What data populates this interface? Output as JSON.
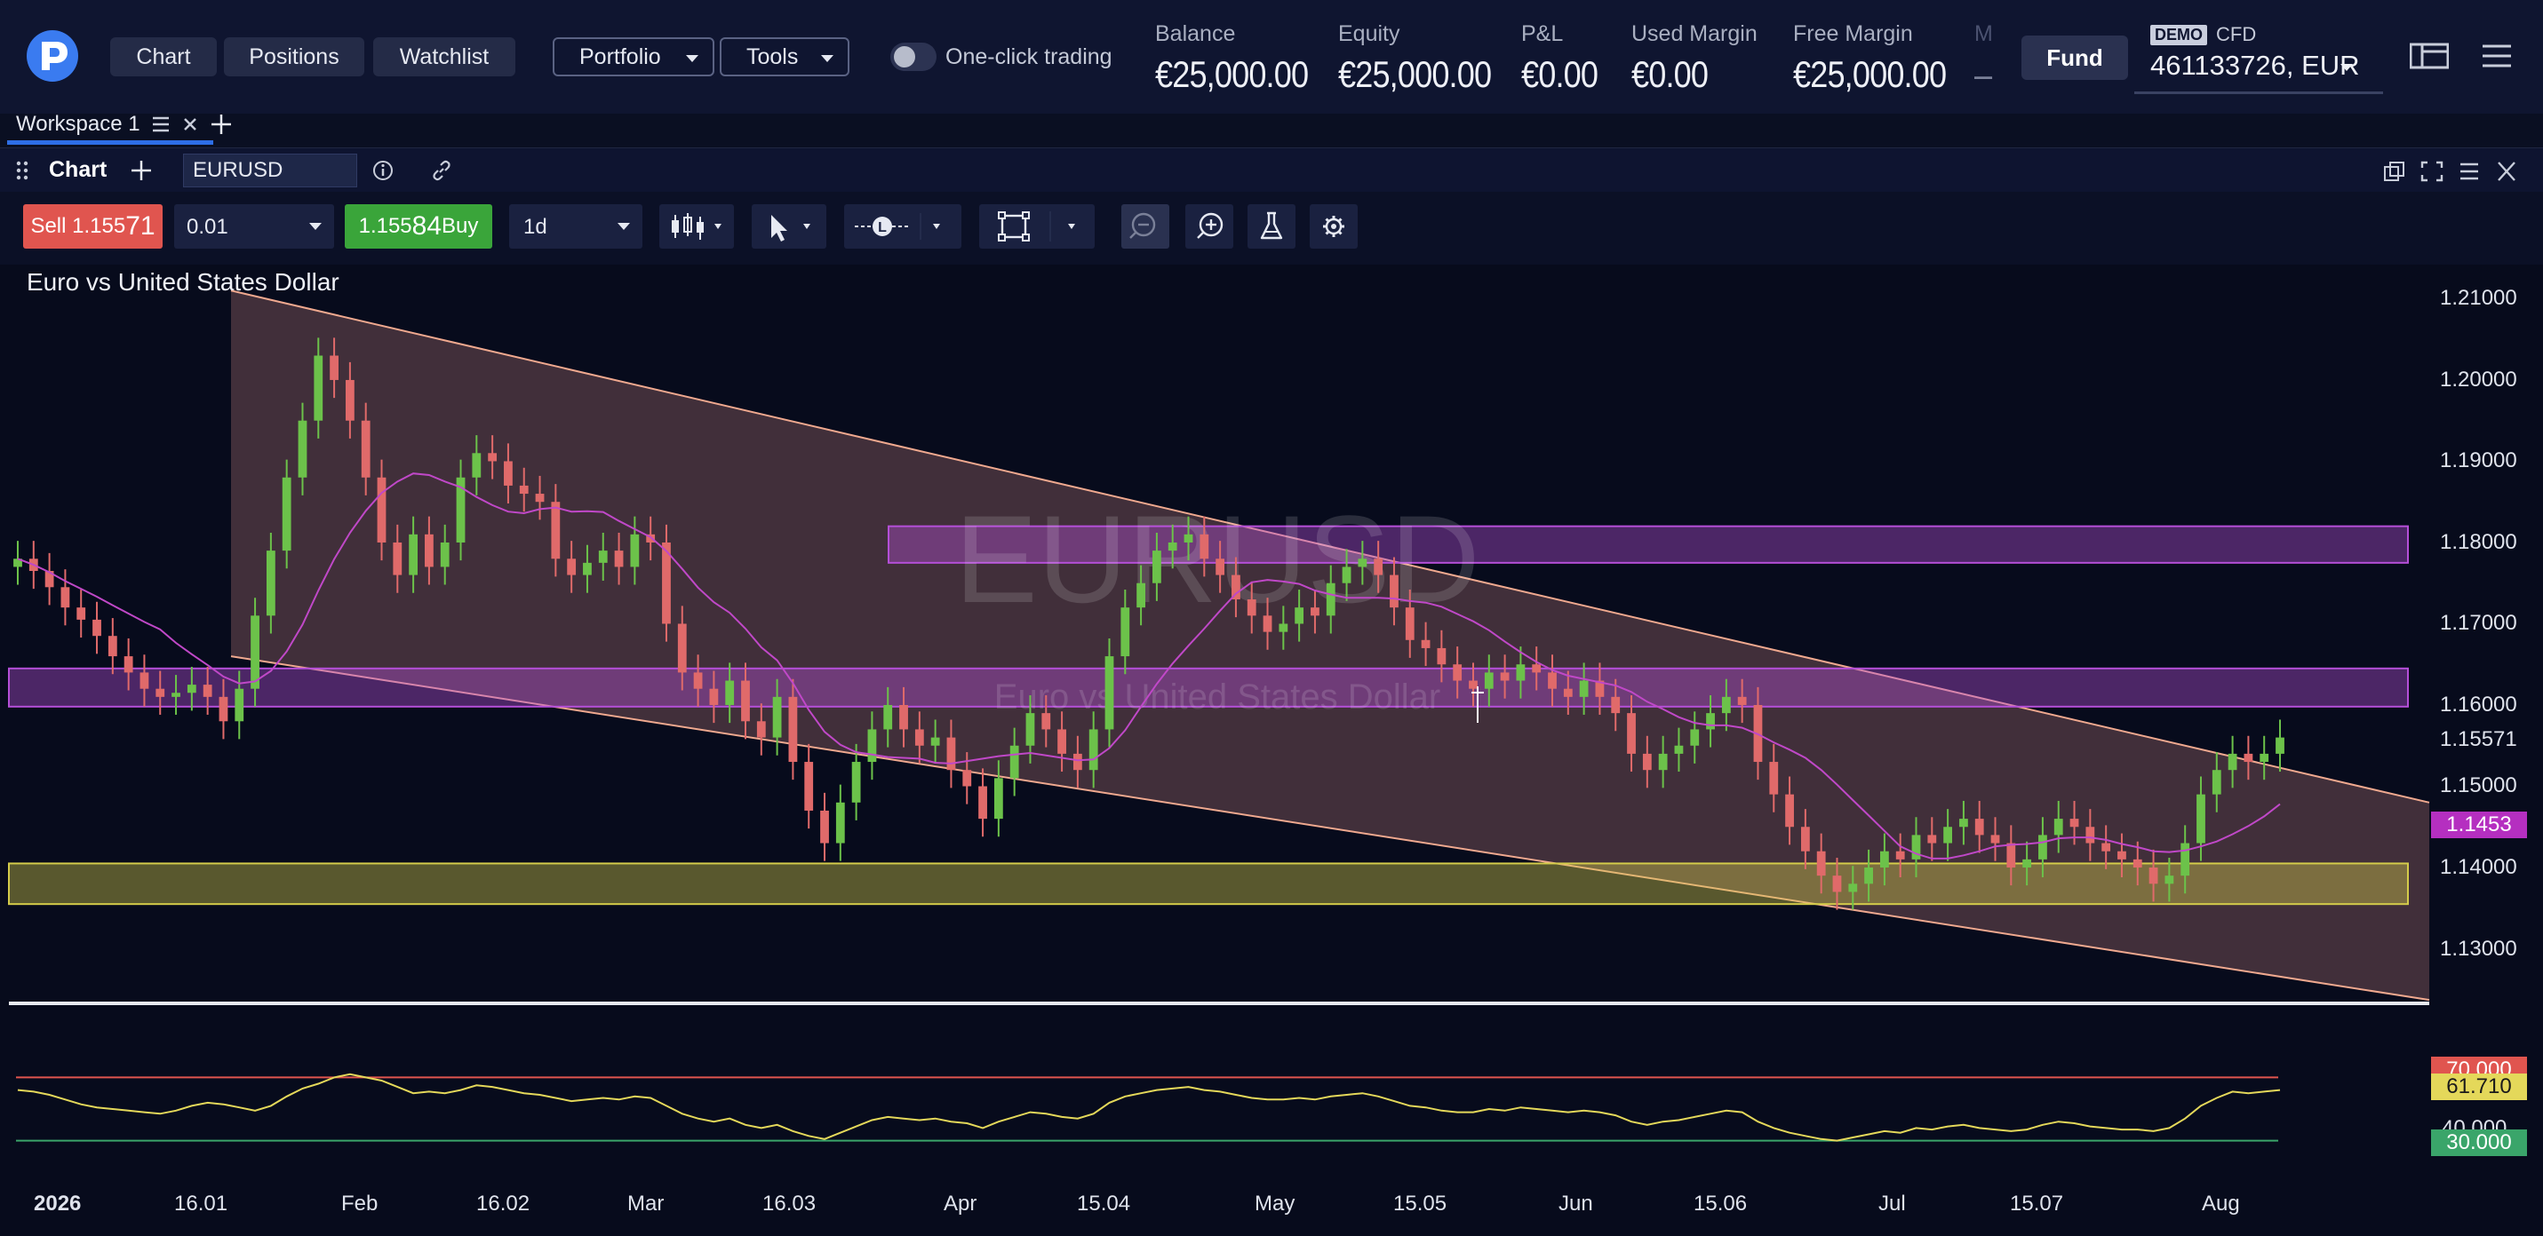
{
  "nav": {
    "chart_label": "Chart",
    "positions_label": "Positions",
    "watchlist_label": "Watchlist",
    "portfolio_label": "Portfolio",
    "tools_label": "Tools",
    "one_click_label": "One-click trading"
  },
  "account": {
    "balance_label": "Balance",
    "balance_value": "€25,000.00",
    "equity_label": "Equity",
    "equity_value": "€25,000.00",
    "pnl_label": "P&L",
    "pnl_value": "€0.00",
    "used_margin_label": "Used Margin",
    "used_margin_value": "€0.00",
    "free_margin_label": "Free Margin",
    "free_margin_value": "€25,000.00",
    "truncated_label": "M",
    "truncated_value": "–",
    "fund_label": "Fund",
    "demo_badge": "DEMO",
    "cfd_label": "CFD",
    "account_id": "461133726, EUR"
  },
  "workspace": {
    "tab_label": "Workspace 1"
  },
  "chart_window": {
    "title": "Chart",
    "symbol": "EURUSD"
  },
  "toolbar": {
    "sell_prefix": "Sell 1.155",
    "sell_big": "71",
    "quantity": "0.01",
    "buy_prefix": "1.155",
    "buy_big": "84",
    "buy_suffix": " Buy",
    "timeframe": "1d"
  },
  "chart_data": {
    "type": "candlestick",
    "title": "Euro vs United States Dollar",
    "watermark_symbol": "EURUSD",
    "watermark_name": "Euro vs United States Dollar",
    "y_ticks": [
      "1.21000",
      "1.20000",
      "1.19000",
      "1.18000",
      "1.17000",
      "1.16000",
      "1.15571",
      "1.15000",
      "1.14000",
      "1.13000"
    ],
    "y_tick_values": [
      1.21,
      1.2,
      1.19,
      1.18,
      1.17,
      1.16,
      1.15571,
      1.15,
      1.14,
      1.13
    ],
    "ylim": [
      1.1235,
      1.2142
    ],
    "x_labels": [
      "2026",
      "16.01",
      "Feb",
      "16.02",
      "Mar",
      "16.03",
      "Apr",
      "15.04",
      "May",
      "15.05",
      "Jun",
      "15.06",
      "Jul",
      "15.07",
      "Aug"
    ],
    "current_price": 1.15571,
    "ma_value_label": "1.1453",
    "ma_value": 1.1453,
    "zones": [
      {
        "name": "upper-resistance",
        "top": 1.182,
        "bottom": 1.1775,
        "color": "#b54fd8"
      },
      {
        "name": "middle-resistance",
        "top": 1.1645,
        "bottom": 1.1598,
        "color": "#b54fd8"
      },
      {
        "name": "support",
        "top": 1.1405,
        "bottom": 1.1355,
        "color": "#d4cc4a"
      }
    ],
    "channel": {
      "upper_start": 1.211,
      "upper_end": 1.148,
      "lower_start": 1.166,
      "lower_end": 1.1237
    },
    "closes": [
      1.178,
      1.1765,
      1.1745,
      1.172,
      1.1705,
      1.1685,
      1.166,
      1.164,
      1.162,
      1.161,
      1.1615,
      1.1625,
      1.161,
      1.158,
      1.162,
      1.171,
      1.179,
      1.188,
      1.195,
      1.203,
      1.2,
      1.195,
      1.188,
      1.18,
      1.176,
      1.181,
      1.177,
      1.18,
      1.188,
      1.191,
      1.19,
      1.187,
      1.186,
      1.185,
      1.178,
      1.176,
      1.1775,
      1.179,
      1.177,
      1.181,
      1.18,
      1.17,
      1.164,
      1.162,
      1.16,
      1.163,
      1.158,
      1.156,
      1.161,
      1.153,
      1.147,
      1.143,
      1.148,
      1.153,
      1.157,
      1.16,
      1.157,
      1.155,
      1.156,
      1.152,
      1.15,
      1.146,
      1.151,
      1.155,
      1.159,
      1.157,
      1.154,
      1.152,
      1.157,
      1.166,
      1.172,
      1.175,
      1.179,
      1.18,
      1.181,
      1.178,
      1.176,
      1.173,
      1.171,
      1.169,
      1.17,
      1.172,
      1.171,
      1.175,
      1.177,
      1.178,
      1.176,
      1.172,
      1.168,
      1.167,
      1.165,
      1.163,
      1.162,
      1.164,
      1.163,
      1.165,
      1.164,
      1.162,
      1.161,
      1.163,
      1.161,
      1.159,
      1.154,
      1.152,
      1.154,
      1.155,
      1.157,
      1.159,
      1.161,
      1.16,
      1.153,
      1.149,
      1.145,
      1.142,
      1.139,
      1.137,
      1.138,
      1.14,
      1.142,
      1.141,
      1.144,
      1.143,
      1.145,
      1.146,
      1.144,
      1.143,
      1.14,
      1.141,
      1.144,
      1.146,
      1.145,
      1.143,
      1.142,
      1.141,
      1.14,
      1.138,
      1.139,
      1.143,
      1.149,
      1.152,
      1.154,
      1.153,
      1.154,
      1.156
    ],
    "rsi": {
      "levels": {
        "overbought": 70,
        "oversold": 30
      },
      "current_label": "61.710",
      "current": 61.71,
      "overbought_label": "70.000",
      "oversold_label": "30.000",
      "mid_label": "40.000",
      "values": [
        62,
        61,
        59,
        56,
        53,
        51,
        50,
        49,
        48,
        47,
        49,
        52,
        54,
        53,
        51,
        49,
        52,
        58,
        63,
        66,
        70,
        72,
        70,
        68,
        64,
        60,
        61,
        60,
        62,
        65,
        64,
        62,
        60,
        59,
        57,
        55,
        56,
        57,
        56,
        58,
        57,
        52,
        47,
        44,
        42,
        44,
        40,
        38,
        40,
        36,
        33,
        31,
        35,
        39,
        43,
        45,
        44,
        43,
        44,
        42,
        41,
        38,
        42,
        45,
        48,
        47,
        45,
        44,
        47,
        54,
        58,
        60,
        62,
        63,
        64,
        62,
        61,
        59,
        57,
        56,
        56,
        57,
        56,
        58,
        59,
        60,
        58,
        55,
        52,
        51,
        49,
        48,
        48,
        50,
        49,
        51,
        50,
        49,
        48,
        49,
        48,
        46,
        42,
        40,
        42,
        43,
        45,
        47,
        49,
        48,
        42,
        38,
        35,
        33,
        31,
        30,
        32,
        34,
        36,
        35,
        38,
        37,
        39,
        40,
        38,
        37,
        36,
        37,
        40,
        42,
        41,
        39,
        38,
        37,
        37,
        36,
        38,
        44,
        52,
        57,
        61,
        60,
        61,
        62
      ]
    }
  }
}
